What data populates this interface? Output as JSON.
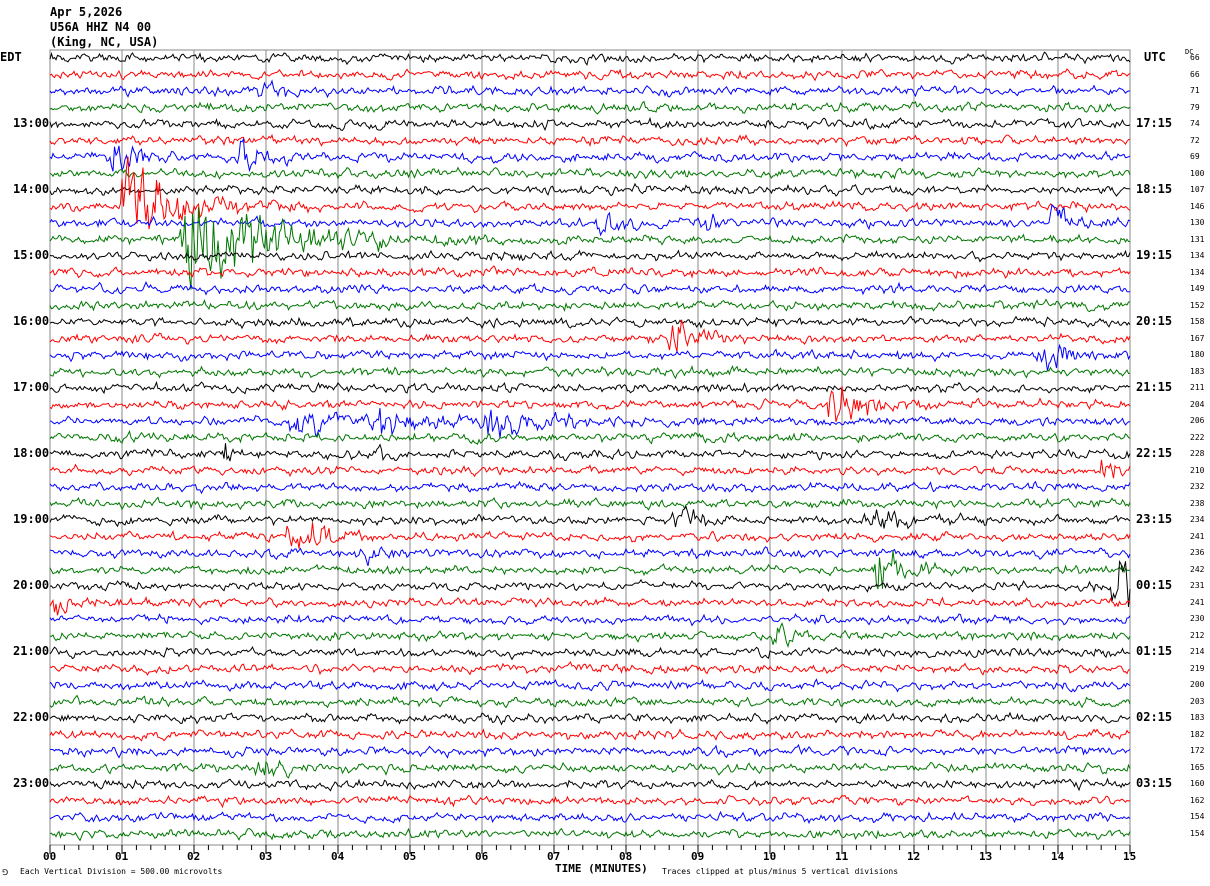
{
  "header": {
    "date": "Apr 5,2026",
    "station": "U56A HHZ N4 00",
    "location": "(King, NC, USA)"
  },
  "left_tz": "EDT",
  "right_tz": "UTC",
  "dc_label": "DC",
  "footer": {
    "scale": "Each Vertical Division =  500.00 microvolts",
    "xlabel": "TIME (MINUTES)",
    "clip_note": "Traces clipped at plus/minus 5 vertical divisions",
    "corner_mark": "⅁"
  },
  "chart_data": {
    "type": "line",
    "title": "U56A HHZ N4 00 helicorder",
    "xlabel": "TIME (MINUTES)",
    "xlim": [
      0,
      15
    ],
    "x_ticks": [
      "00",
      "01",
      "02",
      "03",
      "04",
      "05",
      "06",
      "07",
      "08",
      "09",
      "10",
      "11",
      "12",
      "13",
      "14",
      "15"
    ],
    "left_time_labels": [
      "13:00",
      "14:00",
      "15:00",
      "16:00",
      "17:00",
      "18:00",
      "19:00",
      "20:00",
      "21:00",
      "22:00",
      "23:00"
    ],
    "right_time_labels": [
      "17:15",
      "18:15",
      "19:15",
      "20:15",
      "21:15",
      "22:15",
      "23:15",
      "00:15",
      "01:15",
      "02:15",
      "03:15"
    ],
    "trace_colors": [
      "#000000",
      "#ff0000",
      "#0000ff",
      "#007700"
    ],
    "dc_values": [
      "66",
      "66",
      "71",
      "79",
      "74",
      "72",
      "69",
      "100",
      "107",
      "146",
      "130",
      "131",
      "134",
      "134",
      "149",
      "152",
      "158",
      "167",
      "180",
      "183",
      "211",
      "204",
      "206",
      "222",
      "228",
      "210",
      "232",
      "238",
      "234",
      "241",
      "236",
      "242",
      "231",
      "241",
      "230",
      "212",
      "214",
      "219",
      "200",
      "203",
      "183",
      "182",
      "172",
      "165",
      "160",
      "162",
      "154",
      "154"
    ],
    "events": [
      {
        "trace": 2,
        "minute": 2.85,
        "amp": 0.6,
        "decay": 0.2
      },
      {
        "trace": 6,
        "minute": 0.8,
        "amp": 0.9,
        "decay": 0.3
      },
      {
        "trace": 6,
        "minute": 2.6,
        "amp": 0.9,
        "decay": 0.3
      },
      {
        "trace": 9,
        "minute": 0.95,
        "amp": 2.0,
        "decay": 0.6
      },
      {
        "trace": 10,
        "minute": 7.6,
        "amp": 0.5,
        "decay": 0.3
      },
      {
        "trace": 10,
        "minute": 8.95,
        "amp": 0.5,
        "decay": 0.2
      },
      {
        "trace": 10,
        "minute": 13.9,
        "amp": 0.7,
        "decay": 0.2
      },
      {
        "trace": 11,
        "minute": 1.8,
        "amp": 2.4,
        "decay": 1.0
      },
      {
        "trace": 17,
        "minute": 8.6,
        "amp": 0.7,
        "decay": 0.3
      },
      {
        "trace": 18,
        "minute": 13.7,
        "amp": 0.8,
        "decay": 0.3
      },
      {
        "trace": 21,
        "minute": 10.8,
        "amp": 1.3,
        "decay": 0.3
      },
      {
        "trace": 22,
        "minute": 3.3,
        "amp": 0.35,
        "decay": 1.2
      },
      {
        "trace": 22,
        "minute": 4.5,
        "amp": 0.6,
        "decay": 0.3
      },
      {
        "trace": 22,
        "minute": 6.0,
        "amp": 0.45,
        "decay": 0.8
      },
      {
        "trace": 24,
        "minute": 2.4,
        "amp": 0.4,
        "decay": 0.1
      },
      {
        "trace": 24,
        "minute": 4.5,
        "amp": 0.5,
        "decay": 0.1
      },
      {
        "trace": 25,
        "minute": 14.55,
        "amp": 0.4,
        "decay": 0.3
      },
      {
        "trace": 28,
        "minute": 8.6,
        "amp": 0.7,
        "decay": 0.3
      },
      {
        "trace": 28,
        "minute": 11.3,
        "amp": 0.35,
        "decay": 0.6
      },
      {
        "trace": 29,
        "minute": 3.3,
        "amp": 1.0,
        "decay": 0.3
      },
      {
        "trace": 30,
        "minute": 4.3,
        "amp": 0.45,
        "decay": 0.2
      },
      {
        "trace": 31,
        "minute": 11.45,
        "amp": 0.8,
        "decay": 0.3
      },
      {
        "trace": 32,
        "minute": 14.75,
        "amp": 1.4,
        "decay": 0.3
      },
      {
        "trace": 33,
        "minute": 0.02,
        "amp": 0.6,
        "decay": 0.2
      },
      {
        "trace": 35,
        "minute": 10.05,
        "amp": 0.45,
        "decay": 0.3
      },
      {
        "trace": 43,
        "minute": 2.85,
        "amp": 0.45,
        "decay": 0.2
      }
    ]
  }
}
